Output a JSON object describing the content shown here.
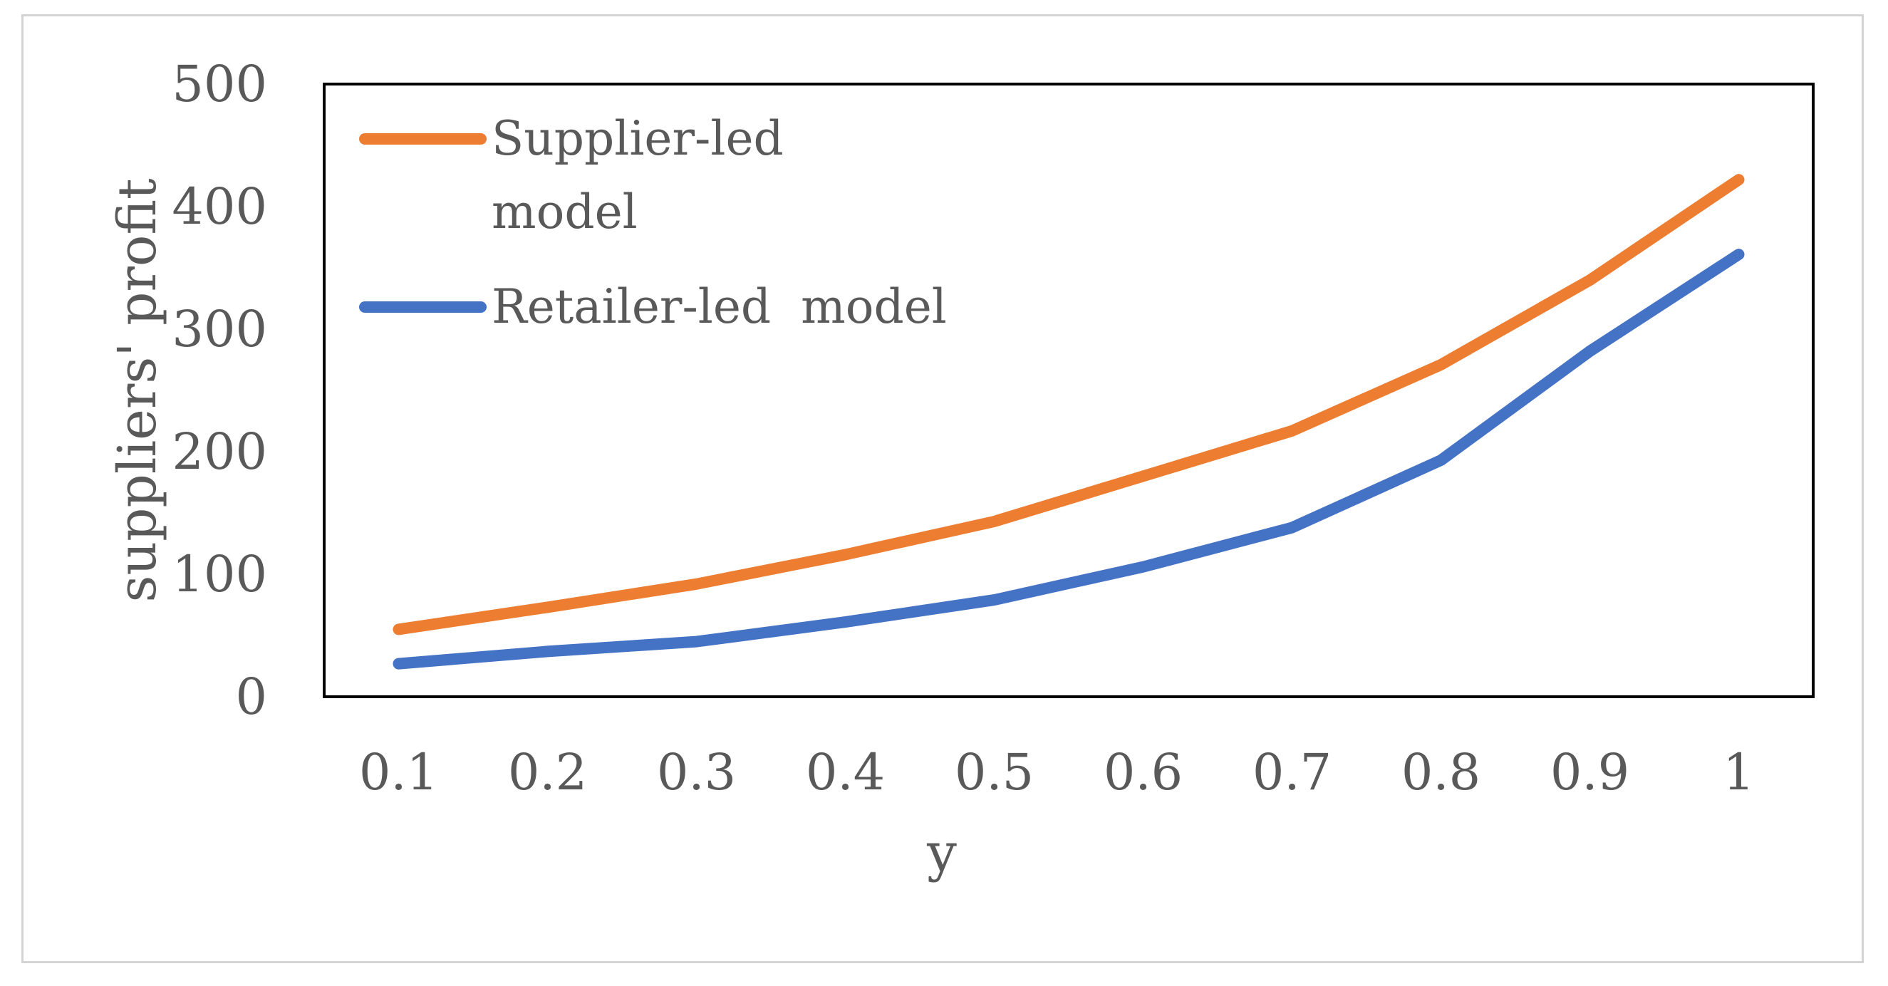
{
  "chart_data": {
    "type": "line",
    "title": "",
    "xlabel": "y",
    "ylabel": "suppliers' profit",
    "categories": [
      "0.1",
      "0.2",
      "0.3",
      "0.4",
      "0.5",
      "0.6",
      "0.7",
      "0.8",
      "0.9",
      "1"
    ],
    "ylim": [
      0,
      500
    ],
    "yticks": [
      "0",
      "100",
      "200",
      "300",
      "400",
      "500"
    ],
    "grid": false,
    "legend_position": "top-left (inside plot)",
    "series": [
      {
        "name": "Supplier-led model",
        "legend_lines": [
          "Supplier-led",
          "model"
        ],
        "color": "#ED7D31",
        "values": [
          55,
          73,
          92,
          116,
          143,
          180,
          217,
          271,
          340,
          422
        ]
      },
      {
        "name": "Retailer-led  model",
        "legend_lines": [
          "Retailer-led  model"
        ],
        "color": "#4472C4",
        "values": [
          27,
          37,
          45,
          61,
          79,
          106,
          138,
          193,
          282,
          361
        ]
      }
    ]
  }
}
